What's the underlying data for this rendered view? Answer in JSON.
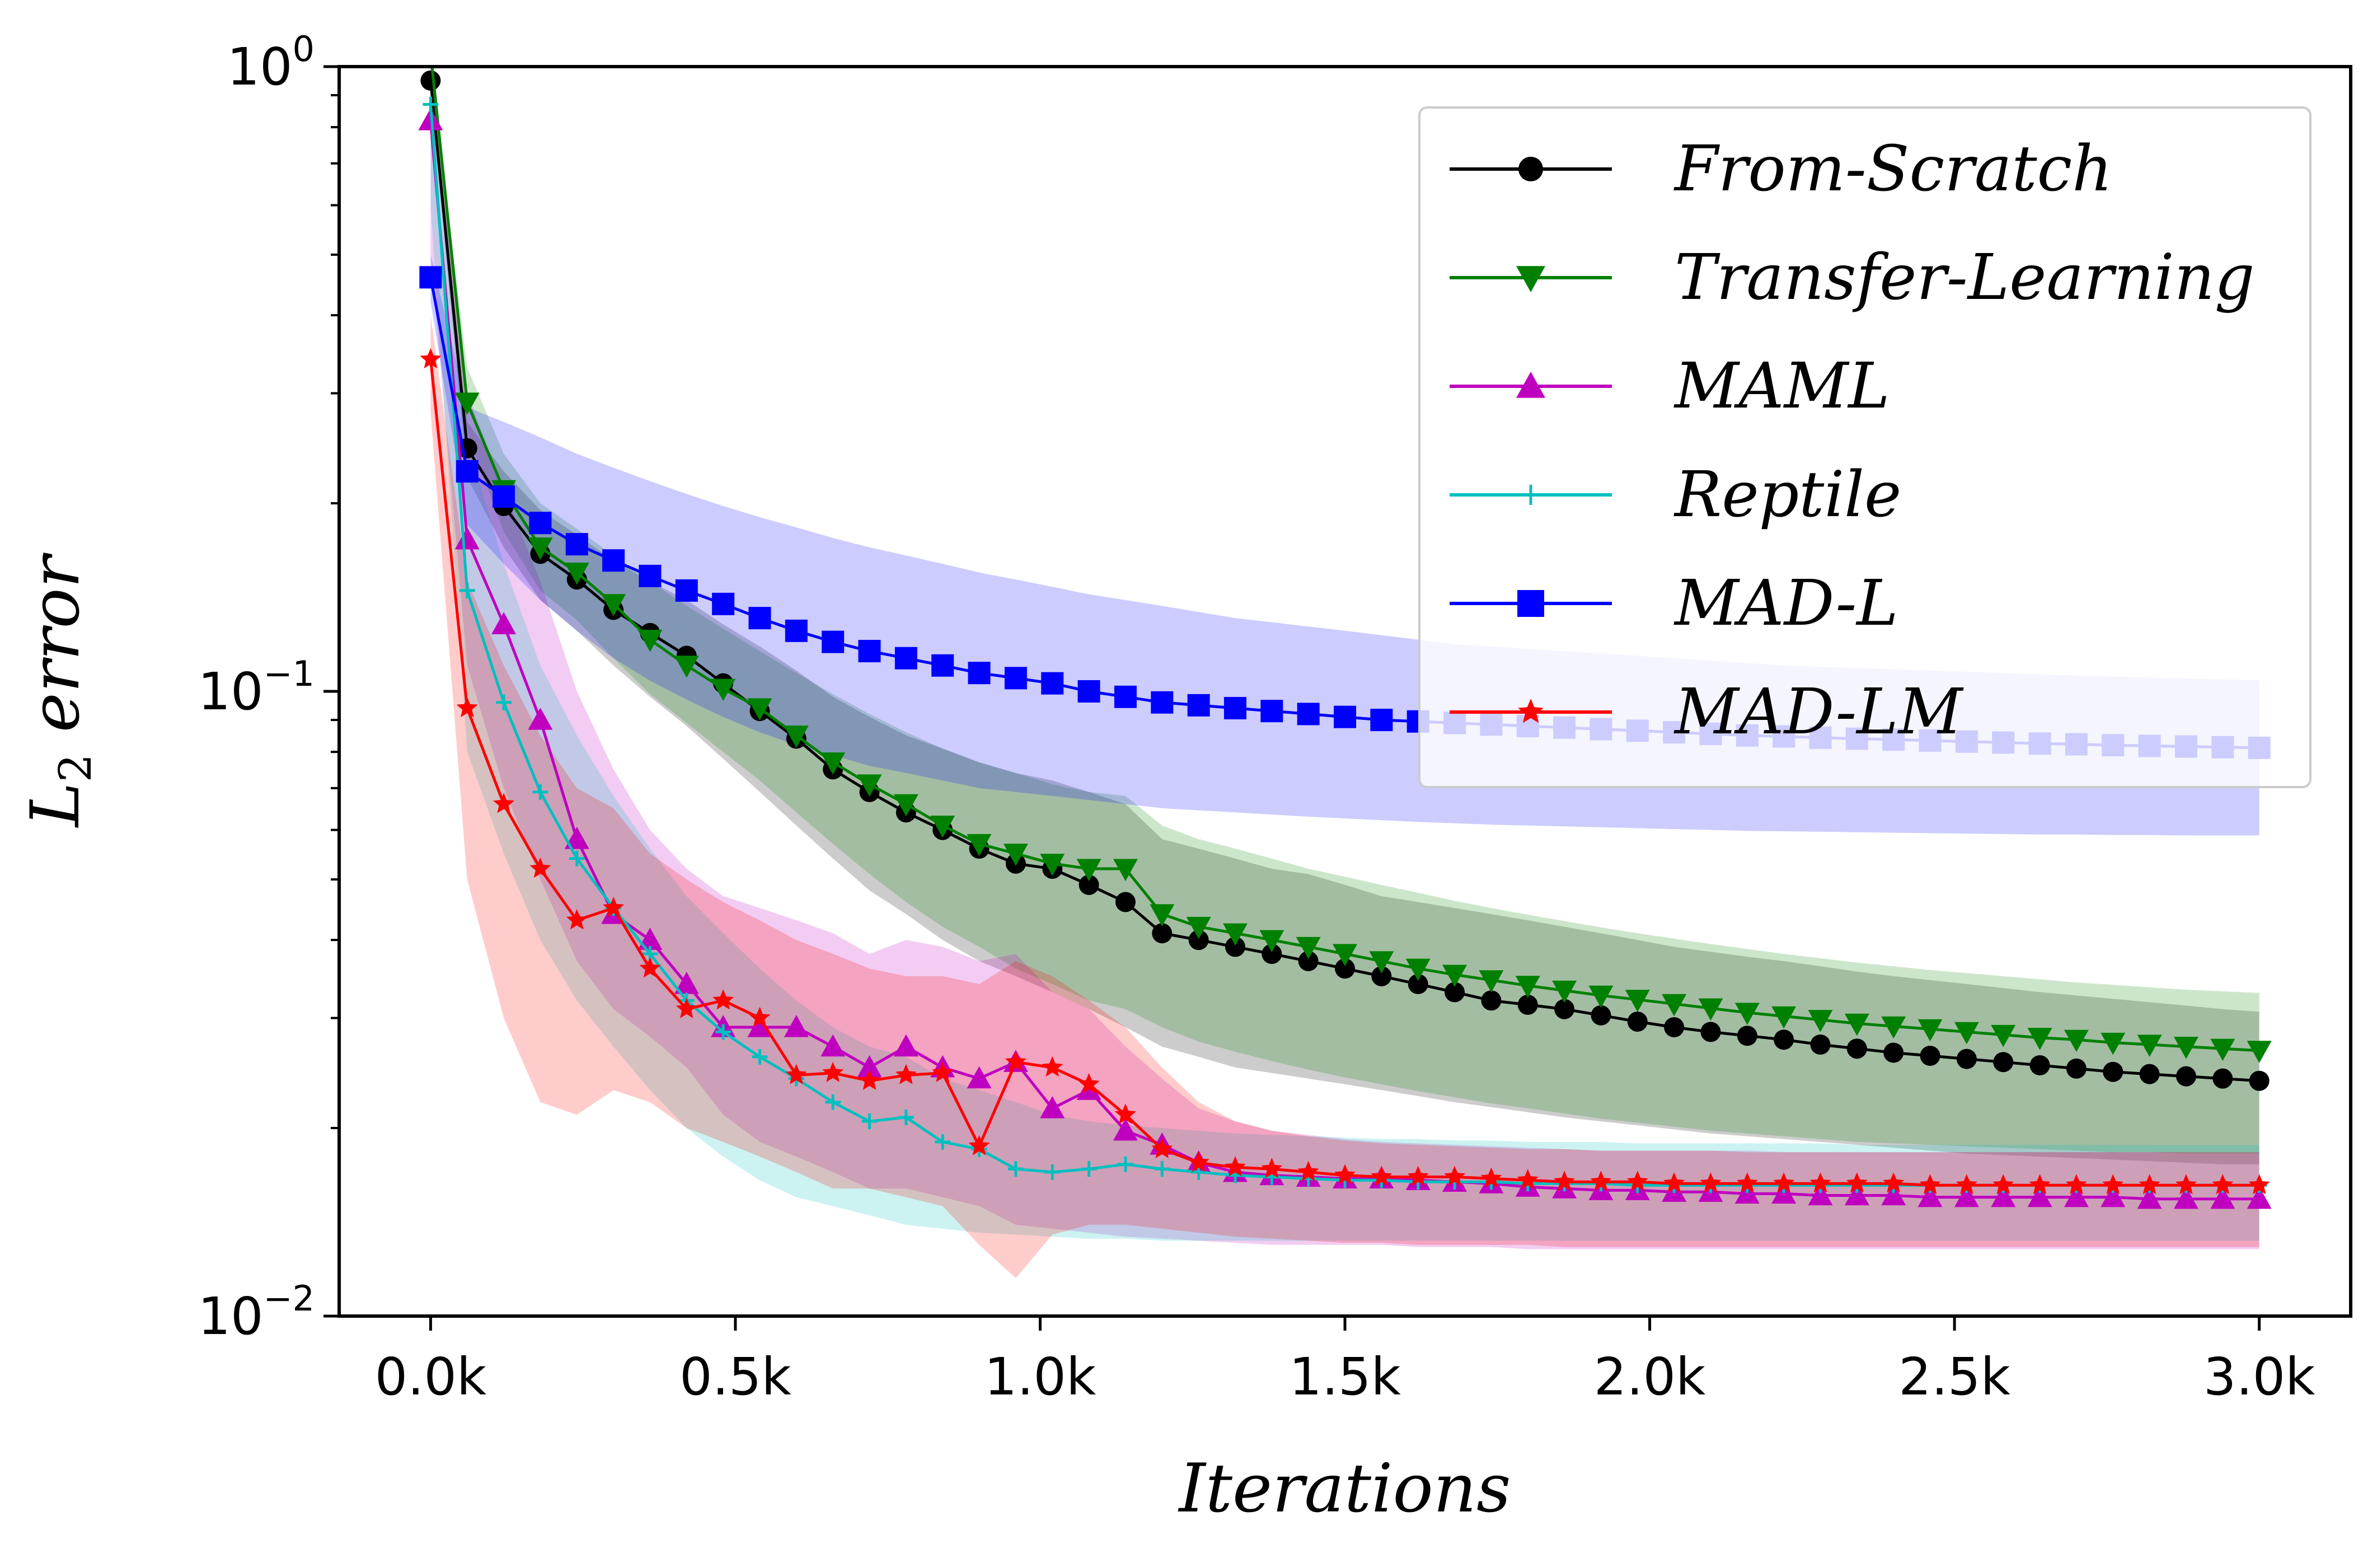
{
  "chart_data": {
    "type": "line",
    "title": "",
    "xlabel": "Iterations",
    "ylabel": "L_2 error",
    "yscale": "log",
    "xlim": [
      -150,
      3150
    ],
    "ylim": [
      0.01,
      1.0
    ],
    "grid": false,
    "legend_position": "top-right",
    "x_ticks": [
      0,
      500,
      1000,
      1500,
      2000,
      2500,
      3000
    ],
    "x_tick_labels": [
      "0.0k",
      "0.5k",
      "1.0k",
      "1.5k",
      "2.0k",
      "2.5k",
      "3.0k"
    ],
    "y_ticks": [
      {
        "value": 1.0,
        "base": "10",
        "exp": "0"
      },
      {
        "value": 0.1,
        "base": "10",
        "exp": "−1"
      },
      {
        "value": 0.01,
        "base": "10",
        "exp": "−2"
      }
    ],
    "x": [
      0,
      60,
      120,
      180,
      240,
      300,
      360,
      420,
      480,
      540,
      600,
      660,
      720,
      780,
      840,
      900,
      960,
      1020,
      1080,
      1140,
      1200,
      1260,
      1320,
      1380,
      1440,
      1500,
      1560,
      1620,
      1680,
      1740,
      1800,
      1860,
      1920,
      1980,
      2040,
      2100,
      2160,
      2220,
      2280,
      2340,
      2400,
      2460,
      2520,
      2580,
      2640,
      2700,
      2760,
      2820,
      2880,
      2940,
      3000
    ],
    "series": [
      {
        "name": "From-Scratch",
        "color": "#000000",
        "marker": "circle",
        "values": [
          0.95,
          0.245,
          0.198,
          0.166,
          0.151,
          0.135,
          0.124,
          0.114,
          0.103,
          0.093,
          0.084,
          0.075,
          0.069,
          0.064,
          0.06,
          0.056,
          0.053,
          0.052,
          0.049,
          0.046,
          0.041,
          0.04,
          0.039,
          0.038,
          0.037,
          0.036,
          0.035,
          0.034,
          0.033,
          0.032,
          0.0315,
          0.031,
          0.0303,
          0.0296,
          0.029,
          0.0285,
          0.0281,
          0.0277,
          0.0272,
          0.0268,
          0.0264,
          0.0261,
          0.0258,
          0.0255,
          0.0252,
          0.0249,
          0.0246,
          0.0244,
          0.0242,
          0.024,
          0.0238
        ],
        "lower": [
          0.9,
          0.22,
          0.17,
          0.14,
          0.125,
          0.11,
          0.098,
          0.088,
          0.078,
          0.069,
          0.061,
          0.054,
          0.048,
          0.044,
          0.04,
          0.037,
          0.035,
          0.033,
          0.031,
          0.029,
          0.027,
          0.026,
          0.025,
          0.0245,
          0.024,
          0.0235,
          0.023,
          0.0225,
          0.022,
          0.0216,
          0.0212,
          0.0208,
          0.0205,
          0.0202,
          0.0199,
          0.0196,
          0.0194,
          0.0192,
          0.019,
          0.0188,
          0.0186,
          0.0184,
          0.0182,
          0.0181,
          0.018,
          0.0179,
          0.0178,
          0.0177,
          0.0176,
          0.0175,
          0.0175
        ],
        "upper": [
          1.0,
          0.27,
          0.225,
          0.195,
          0.178,
          0.162,
          0.15,
          0.14,
          0.128,
          0.118,
          0.108,
          0.098,
          0.091,
          0.085,
          0.081,
          0.077,
          0.074,
          0.072,
          0.069,
          0.066,
          0.058,
          0.056,
          0.054,
          0.052,
          0.051,
          0.049,
          0.047,
          0.046,
          0.045,
          0.044,
          0.043,
          0.042,
          0.041,
          0.04,
          0.039,
          0.0383,
          0.0376,
          0.037,
          0.0363,
          0.0356,
          0.035,
          0.0345,
          0.034,
          0.0335,
          0.033,
          0.0326,
          0.0322,
          0.0318,
          0.0314,
          0.031,
          0.0307
        ]
      },
      {
        "name": "Transfer-Learning",
        "color": "#008000",
        "marker": "triangle-down",
        "values": [
          1.05,
          0.29,
          0.21,
          0.17,
          0.155,
          0.138,
          0.121,
          0.11,
          0.101,
          0.094,
          0.085,
          0.077,
          0.071,
          0.066,
          0.061,
          0.057,
          0.055,
          0.053,
          0.052,
          0.052,
          0.044,
          0.042,
          0.041,
          0.04,
          0.039,
          0.038,
          0.037,
          0.036,
          0.0352,
          0.0345,
          0.0338,
          0.0332,
          0.0326,
          0.0321,
          0.0316,
          0.0311,
          0.0306,
          0.0302,
          0.0298,
          0.0294,
          0.0291,
          0.0288,
          0.0285,
          0.0282,
          0.0279,
          0.0277,
          0.0274,
          0.0272,
          0.027,
          0.0268,
          0.0266
        ],
        "lower": [
          1.0,
          0.26,
          0.18,
          0.145,
          0.13,
          0.113,
          0.099,
          0.089,
          0.08,
          0.072,
          0.064,
          0.057,
          0.051,
          0.046,
          0.042,
          0.039,
          0.036,
          0.034,
          0.032,
          0.031,
          0.029,
          0.0275,
          0.0265,
          0.0256,
          0.0248,
          0.0241,
          0.0235,
          0.0229,
          0.0224,
          0.0219,
          0.0215,
          0.0211,
          0.0207,
          0.0204,
          0.0201,
          0.0198,
          0.0196,
          0.0194,
          0.0192,
          0.019,
          0.0189,
          0.0188,
          0.0187,
          0.0186,
          0.0185,
          0.0184,
          0.0183,
          0.0183,
          0.0182,
          0.0182,
          0.0182
        ],
        "upper": [
          1.0,
          0.33,
          0.24,
          0.2,
          0.182,
          0.165,
          0.15,
          0.137,
          0.126,
          0.116,
          0.107,
          0.099,
          0.092,
          0.086,
          0.081,
          0.077,
          0.074,
          0.071,
          0.069,
          0.068,
          0.061,
          0.058,
          0.056,
          0.054,
          0.052,
          0.0505,
          0.049,
          0.0476,
          0.0462,
          0.045,
          0.0439,
          0.0429,
          0.0419,
          0.041,
          0.0402,
          0.0394,
          0.0387,
          0.038,
          0.0374,
          0.0368,
          0.0363,
          0.0358,
          0.0354,
          0.035,
          0.0346,
          0.0342,
          0.0339,
          0.0336,
          0.0333,
          0.0331,
          0.0329
        ]
      },
      {
        "name": "MAML",
        "color": "#bf00bf",
        "marker": "triangle-up",
        "values": [
          0.82,
          0.175,
          0.128,
          0.09,
          0.058,
          0.044,
          0.04,
          0.034,
          0.029,
          0.029,
          0.029,
          0.027,
          0.025,
          0.027,
          0.025,
          0.024,
          0.0255,
          0.0215,
          0.023,
          0.0198,
          0.0188,
          0.0176,
          0.017,
          0.0168,
          0.0167,
          0.0166,
          0.0166,
          0.0165,
          0.0164,
          0.0163,
          0.0161,
          0.016,
          0.0159,
          0.0159,
          0.0158,
          0.0158,
          0.0157,
          0.0157,
          0.0156,
          0.0156,
          0.0156,
          0.0155,
          0.0155,
          0.0155,
          0.0155,
          0.0155,
          0.0155,
          0.0154,
          0.0154,
          0.0154,
          0.0154
        ],
        "lower": [
          0.5,
          0.11,
          0.07,
          0.05,
          0.037,
          0.031,
          0.028,
          0.025,
          0.021,
          0.019,
          0.018,
          0.017,
          0.016,
          0.016,
          0.0155,
          0.015,
          0.014,
          0.0138,
          0.0136,
          0.0134,
          0.0133,
          0.0132,
          0.0131,
          0.013,
          0.013,
          0.013,
          0.013,
          0.0129,
          0.0129,
          0.0129,
          0.0128,
          0.0128,
          0.0128,
          0.0128,
          0.0128,
          0.0128,
          0.0128,
          0.0128,
          0.0128,
          0.0128,
          0.0128,
          0.0128,
          0.0128,
          0.0128,
          0.0128,
          0.0128,
          0.0128,
          0.0128,
          0.0128,
          0.0128,
          0.0128
        ],
        "upper": [
          0.95,
          0.3,
          0.21,
          0.15,
          0.1,
          0.075,
          0.06,
          0.052,
          0.047,
          0.045,
          0.043,
          0.041,
          0.038,
          0.04,
          0.039,
          0.037,
          0.038,
          0.033,
          0.031,
          0.027,
          0.024,
          0.0215,
          0.0205,
          0.0198,
          0.0195,
          0.0192,
          0.019,
          0.0189,
          0.0188,
          0.0187,
          0.0186,
          0.0185,
          0.0184,
          0.0184,
          0.0184,
          0.0184,
          0.0184,
          0.0183,
          0.0183,
          0.0183,
          0.0183,
          0.0183,
          0.0183,
          0.0183,
          0.0183,
          0.0183,
          0.0183,
          0.0183,
          0.0183,
          0.0183,
          0.0183
        ]
      },
      {
        "name": "Reptile",
        "color": "#00bfbf",
        "marker": "plus",
        "values": [
          0.87,
          0.145,
          0.096,
          0.069,
          0.054,
          0.045,
          0.038,
          0.032,
          0.0285,
          0.026,
          0.024,
          0.022,
          0.0205,
          0.0208,
          0.019,
          0.0185,
          0.0172,
          0.017,
          0.0172,
          0.0175,
          0.0172,
          0.017,
          0.0168,
          0.0167,
          0.0166,
          0.0165,
          0.0165,
          0.0164,
          0.0164,
          0.0164,
          0.0163,
          0.0163,
          0.0163,
          0.0162,
          0.0162,
          0.0162,
          0.0162,
          0.0162,
          0.0162,
          0.0162,
          0.0162,
          0.0162,
          0.0162,
          0.0162,
          0.0162,
          0.0162,
          0.0162,
          0.0162,
          0.0162,
          0.0162,
          0.0162
        ],
        "lower": [
          0.6,
          0.08,
          0.055,
          0.04,
          0.032,
          0.027,
          0.023,
          0.02,
          0.018,
          0.0165,
          0.0155,
          0.015,
          0.0145,
          0.014,
          0.0138,
          0.0136,
          0.0135,
          0.0134,
          0.0133,
          0.0133,
          0.0132,
          0.0132,
          0.0132,
          0.0132,
          0.0132,
          0.0132,
          0.0132,
          0.0132,
          0.0132,
          0.0132,
          0.0132,
          0.0132,
          0.0132,
          0.0132,
          0.0132,
          0.0132,
          0.0132,
          0.0132,
          0.0132,
          0.0132,
          0.0132,
          0.0132,
          0.0132,
          0.0132,
          0.0132,
          0.0132,
          0.0132,
          0.0132,
          0.0132,
          0.0132,
          0.0132
        ],
        "upper": [
          1.0,
          0.25,
          0.16,
          0.11,
          0.085,
          0.068,
          0.056,
          0.047,
          0.041,
          0.036,
          0.032,
          0.029,
          0.027,
          0.026,
          0.024,
          0.023,
          0.022,
          0.021,
          0.0205,
          0.0202,
          0.02,
          0.0198,
          0.0196,
          0.0195,
          0.0194,
          0.0193,
          0.0192,
          0.0192,
          0.0191,
          0.0191,
          0.019,
          0.019,
          0.019,
          0.0189,
          0.0189,
          0.0189,
          0.0189,
          0.0189,
          0.0189,
          0.0188,
          0.0188,
          0.0188,
          0.0188,
          0.0188,
          0.0188,
          0.0188,
          0.0188,
          0.0188,
          0.0188,
          0.0188,
          0.0188
        ]
      },
      {
        "name": "MAD-L",
        "color": "#0000ff",
        "marker": "square",
        "values": [
          0.46,
          0.225,
          0.205,
          0.186,
          0.172,
          0.162,
          0.153,
          0.145,
          0.138,
          0.131,
          0.125,
          0.12,
          0.116,
          0.113,
          0.11,
          0.107,
          0.105,
          0.103,
          0.1,
          0.098,
          0.096,
          0.095,
          0.094,
          0.093,
          0.092,
          0.091,
          0.09,
          0.0895,
          0.089,
          0.0885,
          0.088,
          0.0875,
          0.087,
          0.0865,
          0.086,
          0.0855,
          0.085,
          0.0847,
          0.0843,
          0.084,
          0.0837,
          0.0834,
          0.0831,
          0.0828,
          0.0825,
          0.0823,
          0.082,
          0.0818,
          0.0816,
          0.0814,
          0.0812
        ],
        "lower": [
          0.42,
          0.185,
          0.16,
          0.14,
          0.125,
          0.113,
          0.104,
          0.097,
          0.091,
          0.086,
          0.082,
          0.079,
          0.076,
          0.074,
          0.072,
          0.07,
          0.069,
          0.068,
          0.067,
          0.066,
          0.065,
          0.0645,
          0.064,
          0.0635,
          0.063,
          0.0626,
          0.0622,
          0.0618,
          0.0615,
          0.0612,
          0.061,
          0.0608,
          0.0606,
          0.0604,
          0.0602,
          0.06,
          0.0598,
          0.0597,
          0.0596,
          0.0595,
          0.0594,
          0.0593,
          0.0592,
          0.0591,
          0.059,
          0.059,
          0.0589,
          0.0589,
          0.0588,
          0.0588,
          0.0588
        ],
        "upper": [
          0.5,
          0.285,
          0.27,
          0.255,
          0.24,
          0.228,
          0.217,
          0.207,
          0.198,
          0.19,
          0.183,
          0.176,
          0.17,
          0.165,
          0.16,
          0.155,
          0.151,
          0.147,
          0.143,
          0.14,
          0.137,
          0.134,
          0.131,
          0.129,
          0.127,
          0.125,
          0.123,
          0.121,
          0.119,
          0.118,
          0.117,
          0.116,
          0.115,
          0.114,
          0.113,
          0.112,
          0.111,
          0.11,
          0.1095,
          0.109,
          0.1085,
          0.108,
          0.1075,
          0.107,
          0.1065,
          0.106,
          0.1056,
          0.1052,
          0.1048,
          0.1045,
          0.1042
        ]
      },
      {
        "name": "MAD-LM",
        "color": "#ff0000",
        "marker": "star",
        "values": [
          0.34,
          0.094,
          0.066,
          0.052,
          0.043,
          0.045,
          0.036,
          0.031,
          0.032,
          0.03,
          0.0243,
          0.0245,
          0.0238,
          0.0243,
          0.0245,
          0.0187,
          0.0255,
          0.025,
          0.0235,
          0.021,
          0.0185,
          0.0176,
          0.0173,
          0.0172,
          0.017,
          0.0168,
          0.0167,
          0.0167,
          0.0167,
          0.0166,
          0.0165,
          0.0164,
          0.0164,
          0.0164,
          0.0163,
          0.0163,
          0.0163,
          0.0163,
          0.0163,
          0.0163,
          0.0163,
          0.0162,
          0.0162,
          0.0162,
          0.0162,
          0.0162,
          0.0162,
          0.0162,
          0.0162,
          0.0162,
          0.0162
        ],
        "lower": [
          0.28,
          0.05,
          0.03,
          0.022,
          0.021,
          0.023,
          0.022,
          0.02,
          0.019,
          0.018,
          0.017,
          0.016,
          0.016,
          0.0155,
          0.015,
          0.013,
          0.0115,
          0.0135,
          0.014,
          0.014,
          0.0138,
          0.0136,
          0.0134,
          0.0133,
          0.0132,
          0.0131,
          0.0131,
          0.013,
          0.013,
          0.013,
          0.013,
          0.0129,
          0.0129,
          0.0129,
          0.0129,
          0.0129,
          0.0129,
          0.0129,
          0.0129,
          0.0129,
          0.0129,
          0.0129,
          0.0129,
          0.0129,
          0.0129,
          0.0129,
          0.0129,
          0.0129,
          0.0129,
          0.0129,
          0.0129
        ],
        "upper": [
          0.4,
          0.15,
          0.11,
          0.085,
          0.07,
          0.065,
          0.055,
          0.05,
          0.046,
          0.043,
          0.04,
          0.038,
          0.036,
          0.035,
          0.035,
          0.034,
          0.037,
          0.035,
          0.032,
          0.029,
          0.025,
          0.022,
          0.0205,
          0.0198,
          0.0194,
          0.0191,
          0.0189,
          0.0188,
          0.0187,
          0.0186,
          0.0185,
          0.0185,
          0.0184,
          0.0184,
          0.0184,
          0.0184,
          0.0183,
          0.0183,
          0.0183,
          0.0183,
          0.0183,
          0.0183,
          0.0183,
          0.0183,
          0.0183,
          0.0183,
          0.0183,
          0.0183,
          0.0183,
          0.0183,
          0.0183
        ]
      }
    ]
  }
}
